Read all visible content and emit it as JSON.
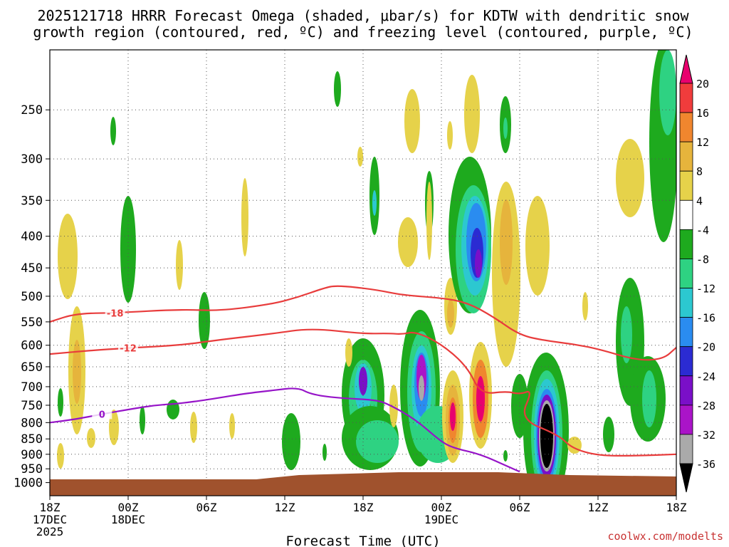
{
  "title_line1": "2025121718 HRRR Forecast Omega (shaded, μbar/s) for KDTW with dendritic snow",
  "title_line2": "growth region (contoured, red, ºC) and freezing level (contoured, purple, ºC)",
  "xlabel": "Forecast Time (UTC)",
  "credit": "coolwx.com/modelts",
  "chart_data": {
    "type": "heatmap",
    "x_range": [
      "2025-12-17 18Z",
      "2025-12-19 18Z"
    ],
    "y_range_hpa": [
      200,
      1050
    ],
    "y_scale": "log-pressure (inverted)",
    "grid": true,
    "y_ticks": [
      250,
      300,
      350,
      400,
      450,
      500,
      550,
      600,
      650,
      700,
      750,
      800,
      850,
      900,
      950,
      1000
    ],
    "x_ticks": [
      {
        "hour": 0,
        "l1": "18Z",
        "l2": "17DEC",
        "l3": "2025"
      },
      {
        "hour": 6,
        "l1": "00Z",
        "l2": "18DEC",
        "l3": ""
      },
      {
        "hour": 12,
        "l1": "06Z",
        "l2": "",
        "l3": ""
      },
      {
        "hour": 18,
        "l1": "12Z",
        "l2": "",
        "l3": ""
      },
      {
        "hour": 24,
        "l1": "18Z",
        "l2": "",
        "l3": ""
      },
      {
        "hour": 30,
        "l1": "00Z",
        "l2": "19DEC",
        "l3": ""
      },
      {
        "hour": 36,
        "l1": "06Z",
        "l2": "",
        "l3": ""
      },
      {
        "hour": 42,
        "l1": "12Z",
        "l2": "",
        "l3": ""
      },
      {
        "hour": 48,
        "l1": "18Z",
        "l2": "",
        "l3": ""
      }
    ],
    "colorbar": {
      "labels": [
        "20",
        "16",
        "12",
        "8",
        "4",
        "-4",
        "-8",
        "-12",
        "-16",
        "-20",
        "-24",
        "-28",
        "-32",
        "-36"
      ],
      "colors": [
        "#e8006e",
        "#f03c3c",
        "#f0862e",
        "#e6b43c",
        "#e6d24a",
        "#ffffff",
        "#1eaa1e",
        "#2ed282",
        "#2cc8d0",
        "#2a8cf0",
        "#2b2bd2",
        "#7a0fc8",
        "#aa14c8",
        "#aaaaaa",
        "#000000"
      ]
    },
    "contours": [
      {
        "label": "-18",
        "color": "#e83c3c",
        "points": [
          [
            0,
            550
          ],
          [
            2,
            533
          ],
          [
            5,
            532
          ],
          [
            10,
            525
          ],
          [
            13,
            528
          ],
          [
            17,
            515
          ],
          [
            19,
            502
          ],
          [
            21,
            485
          ],
          [
            22,
            480
          ],
          [
            25,
            488
          ],
          [
            27,
            498
          ],
          [
            30,
            503
          ],
          [
            32,
            512
          ],
          [
            34,
            540
          ],
          [
            36,
            578
          ],
          [
            38,
            590
          ],
          [
            40,
            597
          ],
          [
            42,
            608
          ],
          [
            45,
            635
          ],
          [
            47,
            632
          ],
          [
            48,
            605
          ]
        ]
      },
      {
        "label": "-12",
        "color": "#e83c3c",
        "points": [
          [
            0,
            620
          ],
          [
            3,
            612
          ],
          [
            6,
            606
          ],
          [
            10,
            600
          ],
          [
            13,
            588
          ],
          [
            17,
            575
          ],
          [
            20,
            563
          ],
          [
            24,
            575
          ],
          [
            26,
            574
          ],
          [
            27,
            576
          ],
          [
            28,
            570
          ],
          [
            30,
            597
          ],
          [
            32,
            650
          ],
          [
            33,
            720
          ],
          [
            35,
            712
          ],
          [
            36,
            720
          ],
          [
            37,
            708
          ],
          [
            36,
            790
          ],
          [
            39,
            838
          ],
          [
            40,
            880
          ],
          [
            42,
            905
          ],
          [
            45,
            905
          ],
          [
            48,
            900
          ]
        ]
      },
      {
        "label": "0",
        "color": "#9614c8",
        "points": [
          [
            0,
            800
          ],
          [
            2,
            790
          ],
          [
            4,
            775
          ],
          [
            6,
            762
          ],
          [
            8,
            750
          ],
          [
            10,
            745
          ],
          [
            12,
            735
          ],
          [
            15,
            718
          ],
          [
            17,
            710
          ],
          [
            19,
            702
          ],
          [
            20,
            720
          ],
          [
            22,
            730
          ],
          [
            25,
            735
          ],
          [
            26,
            748
          ],
          [
            28,
            790
          ],
          [
            30,
            860
          ],
          [
            31,
            880
          ],
          [
            33,
            900
          ],
          [
            35,
            940
          ],
          [
            36,
            960
          ]
        ]
      }
    ],
    "features": [
      {
        "name": "strong-upward-motion",
        "max_ubar_s": -36,
        "hour": 38.5,
        "pressure_hpa": 820
      },
      {
        "name": "sinking-motion-maximum",
        "max_ubar_s": 20,
        "hour": 31,
        "pressure_hpa": 780
      }
    ]
  }
}
